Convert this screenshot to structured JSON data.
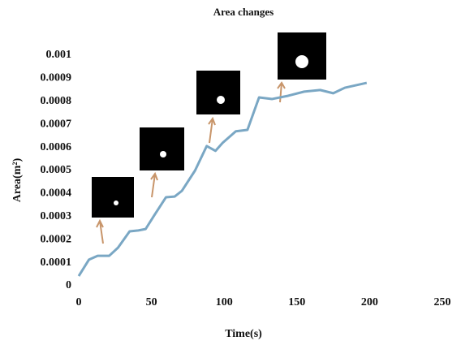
{
  "chart_data": {
    "type": "line",
    "title": "Area changes",
    "xlabel": "Time(s)",
    "ylabel": "Area(m²)",
    "x": [
      0,
      7,
      13,
      21,
      27,
      35,
      41,
      46,
      52,
      60,
      66,
      71,
      80,
      88,
      94,
      99,
      108,
      116,
      124,
      133,
      144,
      155,
      166,
      175,
      183,
      198
    ],
    "series": [
      {
        "name": "Area",
        "color": "#7aa7c4",
        "values": [
          4.2e-05,
          0.000113,
          0.00013,
          0.00013,
          0.000165,
          0.000236,
          0.00024,
          0.000246,
          0.000306,
          0.000384,
          0.000387,
          0.000412,
          0.0005,
          0.000606,
          0.000585,
          0.00062,
          0.00067,
          0.000676,
          0.000817,
          0.00081,
          0.000824,
          0.000842,
          0.000849,
          0.000835,
          0.000859,
          0.00088
        ]
      }
    ],
    "xlim": [
      0,
      250
    ],
    "xticks": [
      0,
      50,
      100,
      150,
      200,
      250
    ],
    "ylim": [
      0,
      0.001
    ],
    "yticks": [
      0,
      0.0001,
      0.0002,
      0.0003,
      0.0004,
      0.0005,
      0.0006,
      0.0007,
      0.0008,
      0.0009,
      0.001
    ]
  }
}
